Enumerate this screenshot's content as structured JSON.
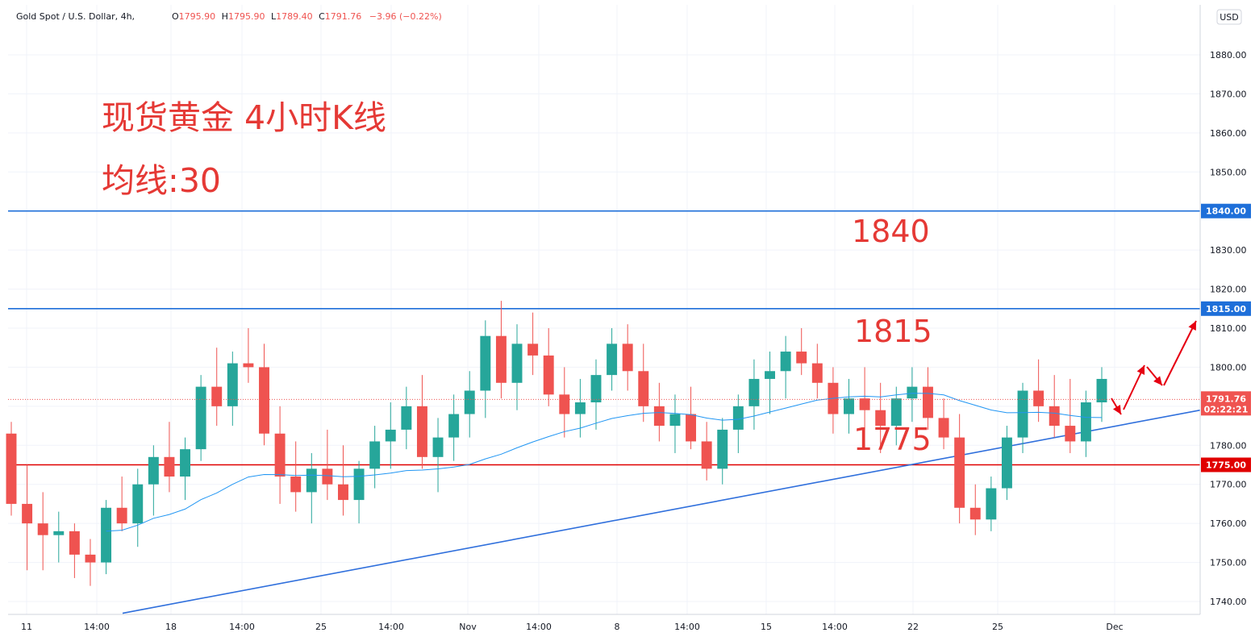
{
  "header": {
    "symbol": "Gold Spot / U.S. Dollar, 4h,",
    "open_label": "O",
    "open": "1795.90",
    "high_label": "H",
    "high": "1795.90",
    "low_label": "L",
    "low": "1789.40",
    "close_label": "C",
    "close": "1791.76",
    "change": "−3.96 (−0.22%)"
  },
  "currency": "USD",
  "annotations": {
    "title_line1": "现货黄金 4小时K线",
    "title_line2": "均线:30",
    "level_1840": "1840",
    "level_1815": "1815",
    "level_1775": "1775"
  },
  "price_tags": {
    "tag_1840": "1840.00",
    "tag_1815": "1815.00",
    "tag_1775": "1775.00",
    "last_price": "1791.76",
    "countdown": "02:22:21"
  },
  "colors": {
    "up": "#26a69a",
    "down": "#ef5350",
    "ma": "#2196f3",
    "hline_blue": "#1e6fd9",
    "hline_red": "#e00000",
    "trendline": "#2f6fdc",
    "annotation": "#e53935",
    "arrow": "#e60012",
    "last_price_tag": "#ef5350"
  },
  "chart_data": {
    "type": "candlestick",
    "symbol": "Gold Spot / U.S. Dollar",
    "timeframe": "4h",
    "ylim": [
      1737,
      1883
    ],
    "y_ticks": [
      1740,
      1750,
      1760,
      1770,
      1780,
      1790,
      1800,
      1810,
      1820,
      1830,
      1840,
      1850,
      1860,
      1870,
      1880
    ],
    "x_tick_labels": [
      "11",
      "14:00",
      "18",
      "14:00",
      "25",
      "14:00",
      "Nov",
      "14:00",
      "8",
      "14:00",
      "15",
      "14:00",
      "22",
      "25",
      "Dec"
    ],
    "horizontal_levels": [
      {
        "price": 1840,
        "color": "blue"
      },
      {
        "price": 1815,
        "color": "blue"
      },
      {
        "price": 1775,
        "color": "red"
      }
    ],
    "trendline": {
      "from": {
        "bar": 0,
        "price": 1737
      },
      "to": {
        "bar": 245,
        "price": 1789
      }
    },
    "moving_average": {
      "period": 30
    },
    "last_price": 1791.76,
    "candles": [
      [
        1783,
        1786,
        1762,
        1765
      ],
      [
        1765,
        1775,
        1748,
        1760
      ],
      [
        1760,
        1768,
        1748,
        1757
      ],
      [
        1757,
        1763,
        1750,
        1758
      ],
      [
        1758,
        1760,
        1746,
        1752
      ],
      [
        1752,
        1756,
        1744,
        1750
      ],
      [
        1750,
        1766,
        1747,
        1764
      ],
      [
        1764,
        1772,
        1758,
        1760
      ],
      [
        1760,
        1774,
        1754,
        1770
      ],
      [
        1770,
        1780,
        1762,
        1777
      ],
      [
        1777,
        1786,
        1768,
        1772
      ],
      [
        1772,
        1782,
        1766,
        1779
      ],
      [
        1779,
        1798,
        1776,
        1795
      ],
      [
        1795,
        1805,
        1785,
        1790
      ],
      [
        1790,
        1804,
        1785,
        1801
      ],
      [
        1801,
        1810,
        1796,
        1800
      ],
      [
        1800,
        1806,
        1780,
        1783
      ],
      [
        1783,
        1790,
        1765,
        1772
      ],
      [
        1772,
        1781,
        1763,
        1768
      ],
      [
        1768,
        1778,
        1760,
        1774
      ],
      [
        1774,
        1784,
        1766,
        1770
      ],
      [
        1770,
        1780,
        1762,
        1766
      ],
      [
        1766,
        1776,
        1760,
        1774
      ],
      [
        1774,
        1785,
        1769,
        1781
      ],
      [
        1781,
        1791,
        1774,
        1784
      ],
      [
        1784,
        1795,
        1779,
        1790
      ],
      [
        1790,
        1798,
        1774,
        1777
      ],
      [
        1777,
        1787,
        1768,
        1782
      ],
      [
        1782,
        1793,
        1776,
        1788
      ],
      [
        1788,
        1799,
        1782,
        1794
      ],
      [
        1794,
        1812,
        1787,
        1808
      ],
      [
        1808,
        1817,
        1792,
        1796
      ],
      [
        1796,
        1811,
        1789,
        1806
      ],
      [
        1806,
        1814,
        1798,
        1803
      ],
      [
        1803,
        1810,
        1790,
        1793
      ],
      [
        1793,
        1800,
        1782,
        1788
      ],
      [
        1788,
        1797,
        1782,
        1791
      ],
      [
        1791,
        1802,
        1784,
        1798
      ],
      [
        1798,
        1810,
        1794,
        1806
      ],
      [
        1806,
        1811,
        1794,
        1799
      ],
      [
        1799,
        1806,
        1786,
        1790
      ],
      [
        1790,
        1796,
        1781,
        1785
      ],
      [
        1785,
        1793,
        1778,
        1788
      ],
      [
        1788,
        1795,
        1779,
        1781
      ],
      [
        1781,
        1786,
        1771,
        1774
      ],
      [
        1774,
        1787,
        1770,
        1784
      ],
      [
        1784,
        1793,
        1778,
        1790
      ],
      [
        1790,
        1802,
        1784,
        1797
      ],
      [
        1797,
        1804,
        1788,
        1799
      ],
      [
        1799,
        1808,
        1792,
        1804
      ],
      [
        1804,
        1810,
        1798,
        1801
      ],
      [
        1801,
        1806,
        1792,
        1796
      ],
      [
        1796,
        1800,
        1783,
        1788
      ],
      [
        1788,
        1797,
        1783,
        1792
      ],
      [
        1792,
        1800,
        1784,
        1789
      ],
      [
        1789,
        1796,
        1778,
        1785
      ],
      [
        1785,
        1795,
        1780,
        1792
      ],
      [
        1792,
        1800,
        1786,
        1795
      ],
      [
        1795,
        1800,
        1784,
        1787
      ],
      [
        1787,
        1792,
        1779,
        1782
      ],
      [
        1782,
        1788,
        1760,
        1764
      ],
      [
        1764,
        1770,
        1757,
        1761
      ],
      [
        1761,
        1772,
        1758,
        1769
      ],
      [
        1769,
        1785,
        1766,
        1782
      ],
      [
        1782,
        1796,
        1778,
        1794
      ],
      [
        1794,
        1802,
        1786,
        1790
      ],
      [
        1790,
        1798,
        1782,
        1785
      ],
      [
        1785,
        1797,
        1778,
        1781
      ],
      [
        1781,
        1794,
        1777,
        1791
      ],
      [
        1791,
        1800,
        1786,
        1797
      ]
    ]
  }
}
